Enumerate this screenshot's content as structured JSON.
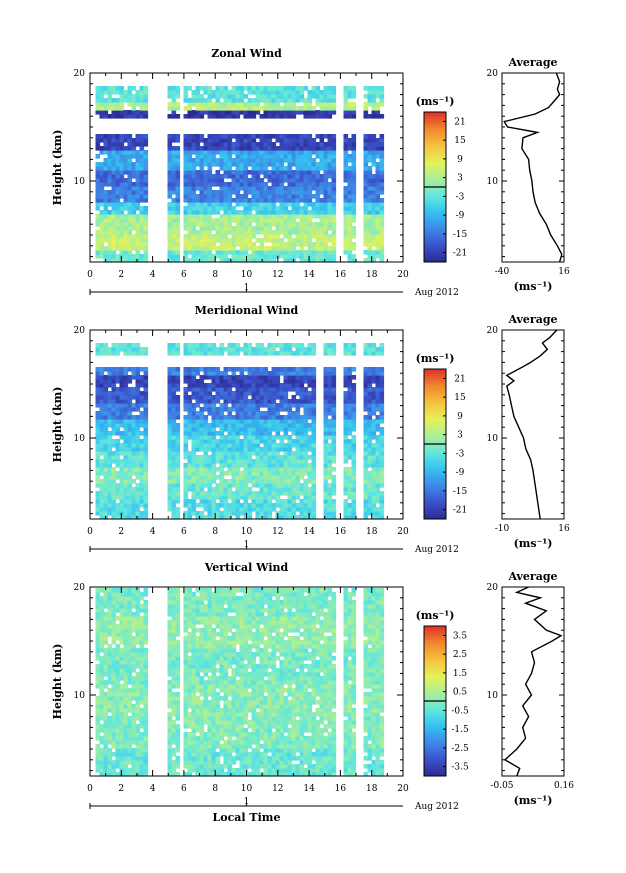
{
  "chart_data": [
    {
      "type": "heatmap",
      "title": "Zonal Wind",
      "xlabel": "",
      "ylabel": "Height (km)",
      "xlim": [
        0,
        20
      ],
      "ylim": [
        2.5,
        20
      ],
      "x_ticks": [
        "0",
        "2",
        "4",
        "6",
        "8",
        "10",
        "12",
        "14",
        "16",
        "18",
        "20"
      ],
      "y_ticks": [
        "10",
        "20"
      ],
      "date_axis": {
        "tick": "1",
        "label": "Aug 2012"
      },
      "data_gaps_local_time": [
        [
          3.6,
          4.8
        ],
        [
          5.5,
          5.9
        ],
        [
          15.6,
          16.0
        ],
        [
          16.8,
          17.3
        ],
        [
          18.5,
          20
        ]
      ],
      "colorbar": {
        "unit": "(ms⁻¹)",
        "ticks": [
          "21",
          "15",
          "9",
          "3",
          "-3",
          "-9",
          "-15",
          "-21"
        ],
        "range": [
          -24,
          24
        ]
      },
      "height_bands": [
        {
          "from": 2.5,
          "to": 3.5,
          "value": -2
        },
        {
          "from": 3.5,
          "to": 5.0,
          "value": 5
        },
        {
          "from": 5.0,
          "to": 6.8,
          "value": 3
        },
        {
          "from": 6.8,
          "to": 7.8,
          "value": -6
        },
        {
          "from": 7.8,
          "to": 9.5,
          "value": -14
        },
        {
          "from": 9.5,
          "to": 11.0,
          "value": -16
        },
        {
          "from": 11.0,
          "to": 12.5,
          "value": -10
        },
        {
          "from": 12.5,
          "to": 14.0,
          "value": -20
        },
        {
          "from": 14.0,
          "to": 15.5,
          "value": null
        },
        {
          "from": 15.5,
          "to": 16.5,
          "value": -22
        },
        {
          "from": 16.5,
          "to": 17.3,
          "value": 4
        },
        {
          "from": 17.3,
          "to": 18.5,
          "value": -3
        },
        {
          "from": 18.5,
          "to": 20,
          "value": null
        }
      ],
      "average_profile": {
        "title": "Average",
        "xlim": [
          -40,
          16
        ],
        "x_ticks": [
          "-40",
          "16"
        ],
        "xlabel": "(ms⁻¹)",
        "y_ticks": [
          "10",
          "20"
        ],
        "points": [
          [
            12,
            2.5
          ],
          [
            14,
            3.2
          ],
          [
            10,
            4.0
          ],
          [
            4,
            5.0
          ],
          [
            0,
            6.0
          ],
          [
            -6,
            7.0
          ],
          [
            -10,
            8.0
          ],
          [
            -12,
            9.0
          ],
          [
            -13,
            10.0
          ],
          [
            -15,
            11.0
          ],
          [
            -16,
            12.0
          ],
          [
            -22,
            13.0
          ],
          [
            -21,
            14.0
          ],
          [
            -8,
            14.5
          ],
          [
            -35,
            15.0
          ],
          [
            -38,
            15.5
          ],
          [
            -10,
            16.2
          ],
          [
            2,
            16.8
          ],
          [
            8,
            17.5
          ],
          [
            12,
            18.0
          ],
          [
            10,
            18.5
          ],
          [
            12,
            19.2
          ],
          [
            9,
            20.0
          ]
        ]
      }
    },
    {
      "type": "heatmap",
      "title": "Meridional Wind",
      "xlabel": "",
      "ylabel": "Height (km)",
      "xlim": [
        0,
        20
      ],
      "ylim": [
        2.5,
        20
      ],
      "x_ticks": [
        "0",
        "2",
        "4",
        "6",
        "8",
        "10",
        "12",
        "14",
        "16",
        "18",
        "20"
      ],
      "y_ticks": [
        "10",
        "20"
      ],
      "date_axis": {
        "tick": "1",
        "label": "Aug 2012"
      },
      "data_gaps_local_time": [
        [
          3.6,
          4.8
        ],
        [
          5.5,
          5.9
        ],
        [
          14.4,
          14.7
        ],
        [
          15.6,
          16.0
        ],
        [
          16.8,
          17.3
        ],
        [
          18.5,
          20
        ]
      ],
      "colorbar": {
        "unit": "(ms⁻¹)",
        "ticks": [
          "21",
          "15",
          "9",
          "3",
          "-3",
          "-9",
          "-15",
          "-21"
        ],
        "range": [
          -24,
          24
        ]
      },
      "height_bands": [
        {
          "from": 2.5,
          "to": 4.0,
          "value": -4
        },
        {
          "from": 4.0,
          "to": 5.5,
          "value": -2
        },
        {
          "from": 5.5,
          "to": 7.0,
          "value": 0
        },
        {
          "from": 7.0,
          "to": 8.5,
          "value": -3
        },
        {
          "from": 8.5,
          "to": 10.0,
          "value": -5
        },
        {
          "from": 10.0,
          "to": 11.5,
          "value": -8
        },
        {
          "from": 11.5,
          "to": 13.0,
          "value": -14
        },
        {
          "from": 13.0,
          "to": 14.5,
          "value": -18
        },
        {
          "from": 14.5,
          "to": 15.5,
          "value": -20
        },
        {
          "from": 15.5,
          "to": 16.5,
          "value": -14
        },
        {
          "from": 16.5,
          "to": 17.5,
          "value": null
        },
        {
          "from": 17.5,
          "to": 18.5,
          "value": -3
        },
        {
          "from": 18.5,
          "to": 20,
          "value": null
        }
      ],
      "average_profile": {
        "title": "Average",
        "xlim": [
          -10,
          16
        ],
        "x_ticks": [
          "-10",
          "16"
        ],
        "xlabel": "(ms⁻¹)",
        "y_ticks": [
          "10",
          "20"
        ],
        "points": [
          [
            6,
            2.5
          ],
          [
            5,
            4.0
          ],
          [
            4,
            5.5
          ],
          [
            3,
            7.0
          ],
          [
            2,
            8.0
          ],
          [
            0,
            9.0
          ],
          [
            -1,
            10.0
          ],
          [
            -3,
            11.0
          ],
          [
            -5,
            12.0
          ],
          [
            -6,
            13.0
          ],
          [
            -7,
            14.0
          ],
          [
            -8,
            14.8
          ],
          [
            -5,
            15.3
          ],
          [
            -8,
            15.8
          ],
          [
            -2,
            16.5
          ],
          [
            2,
            17.0
          ],
          [
            6,
            17.6
          ],
          [
            9,
            18.2
          ],
          [
            7,
            18.8
          ],
          [
            10,
            19.3
          ],
          [
            13,
            20.0
          ]
        ]
      }
    },
    {
      "type": "heatmap",
      "title": "Vertical Wind",
      "xlabel": "Local Time",
      "ylabel": "Height (km)",
      "xlim": [
        0,
        20
      ],
      "ylim": [
        2.5,
        20
      ],
      "x_ticks": [
        "0",
        "2",
        "4",
        "6",
        "8",
        "10",
        "12",
        "14",
        "16",
        "18",
        "20"
      ],
      "y_ticks": [
        "10",
        "20"
      ],
      "date_axis": {
        "tick": "1",
        "label": "Aug 2012"
      },
      "data_gaps_local_time": [
        [
          3.6,
          4.8
        ],
        [
          5.5,
          5.9
        ],
        [
          15.6,
          16.0
        ],
        [
          16.8,
          17.3
        ],
        [
          18.5,
          20
        ]
      ],
      "colorbar": {
        "unit": "(ms⁻¹)",
        "ticks": [
          "3.5",
          "2.5",
          "1.5",
          "0.5",
          "-0.5",
          "-1.5",
          "-2.5",
          "-3.5"
        ],
        "range": [
          -4,
          4
        ]
      },
      "height_bands": [
        {
          "from": 2.5,
          "to": 5.0,
          "value": -0.3
        },
        {
          "from": 5.0,
          "to": 8.0,
          "value": 0.0
        },
        {
          "from": 8.0,
          "to": 11.0,
          "value": 0.1
        },
        {
          "from": 11.0,
          "to": 14.0,
          "value": -0.1
        },
        {
          "from": 14.0,
          "to": 17.0,
          "value": 0.2
        },
        {
          "from": 17.0,
          "to": 20.0,
          "value": -0.1
        }
      ],
      "average_profile": {
        "title": "Average",
        "xlim": [
          -0.05,
          0.16
        ],
        "x_ticks": [
          "-0.05",
          "0.16"
        ],
        "xlabel": "(ms⁻¹)",
        "y_ticks": [
          "10",
          "20"
        ],
        "points": [
          [
            0.0,
            2.5
          ],
          [
            0.01,
            3.2
          ],
          [
            -0.04,
            4.0
          ],
          [
            0.0,
            5.0
          ],
          [
            0.03,
            6.0
          ],
          [
            0.02,
            7.0
          ],
          [
            0.04,
            8.0
          ],
          [
            0.02,
            9.0
          ],
          [
            0.05,
            10.0
          ],
          [
            0.03,
            11.0
          ],
          [
            0.05,
            12.0
          ],
          [
            0.06,
            13.0
          ],
          [
            0.05,
            14.0
          ],
          [
            0.12,
            15.0
          ],
          [
            0.15,
            15.5
          ],
          [
            0.1,
            16.0
          ],
          [
            0.06,
            17.0
          ],
          [
            0.1,
            17.8
          ],
          [
            0.03,
            18.5
          ],
          [
            0.08,
            19.0
          ],
          [
            0.0,
            19.5
          ],
          [
            0.04,
            20.0
          ]
        ]
      }
    }
  ]
}
